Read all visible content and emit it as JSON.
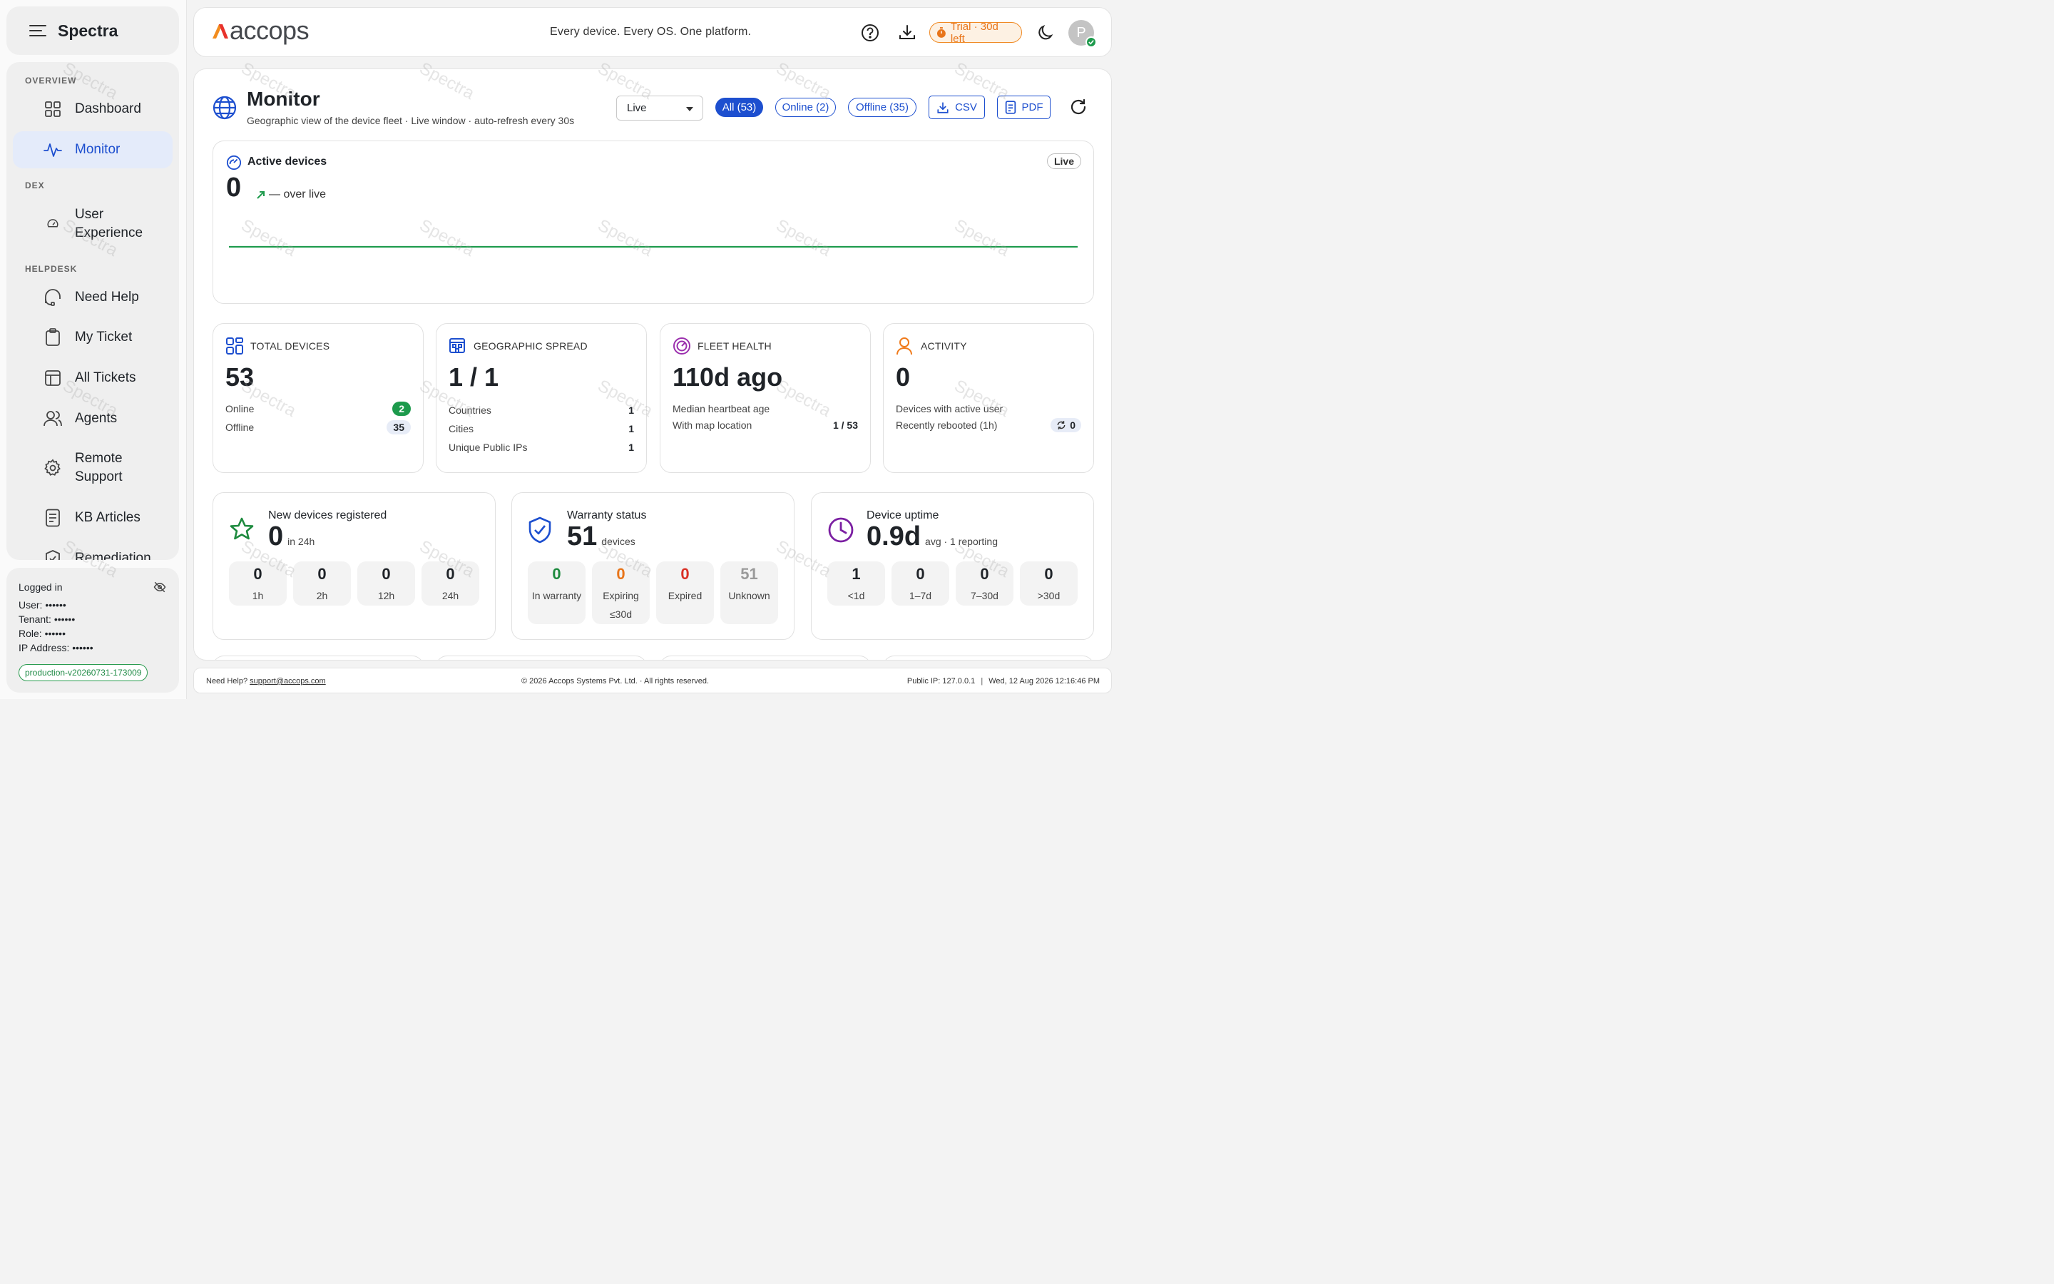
{
  "app": {
    "name": "Spectra",
    "watermark": "Spectra"
  },
  "sidebar": {
    "sections": [
      "OVERVIEW",
      "DEX",
      "HELPDESK"
    ],
    "items": [
      {
        "label": "Dashboard",
        "icon": "grid-icon",
        "active": false
      },
      {
        "label": "Monitor",
        "icon": "activity-icon",
        "active": true
      },
      {
        "label": "User Experience",
        "icon": "gauge-icon",
        "active": false
      },
      {
        "label": "Need Help",
        "icon": "headset-icon",
        "active": false
      },
      {
        "label": "My Ticket",
        "icon": "clipboard-icon",
        "active": false
      },
      {
        "label": "All Tickets",
        "icon": "table-icon",
        "active": false
      },
      {
        "label": "Agents",
        "icon": "users-icon",
        "active": false
      },
      {
        "label": "Remote Support",
        "icon": "gear-icon",
        "active": false
      },
      {
        "label": "KB Articles",
        "icon": "document-icon",
        "active": false
      },
      {
        "label": "Remediation",
        "icon": "shield-check-icon",
        "active": false
      }
    ]
  },
  "session": {
    "heading": "Logged in",
    "user": "User: ••••••",
    "tenant": "Tenant: ••••••",
    "role": "Role: ••••••",
    "ip": "IP Address: ••••••",
    "version": "production-v20260731-173009"
  },
  "topbar": {
    "logo_text": "accops",
    "tagline": "Every device. Every OS. One platform.",
    "trial": "Trial · 30d left",
    "avatar_initial": "P"
  },
  "page": {
    "title": "Monitor",
    "subtitle": "Geographic view of the device fleet · Live window · auto-refresh every 30s",
    "window_select": "Live",
    "filters": {
      "all": "All (53)",
      "online": "Online (2)",
      "offline": "Offline (35)"
    },
    "csv": "CSV",
    "pdf": "PDF"
  },
  "active_devices": {
    "title": "Active devices",
    "value": "0",
    "trend_text": "— over live",
    "badge": "Live",
    "line_color": "#1f9b4d"
  },
  "stats": {
    "total": {
      "head": "TOTAL DEVICES",
      "value": "53",
      "online_label": "Online",
      "online": "2",
      "offline_label": "Offline",
      "offline": "35"
    },
    "geo": {
      "head": "GEOGRAPHIC SPREAD",
      "value": "1 / 1",
      "rows": [
        {
          "label": "Countries",
          "value": "1"
        },
        {
          "label": "Cities",
          "value": "1"
        },
        {
          "label": "Unique Public IPs",
          "value": "1"
        }
      ]
    },
    "health": {
      "head": "FLEET HEALTH",
      "value": "110d ago",
      "median_label": "Median heartbeat age",
      "map_label": "With map location",
      "map_value": "1 / 53"
    },
    "activity": {
      "head": "ACTIVITY",
      "value": "0",
      "active_label": "Devices with active user",
      "reboot_label": "Recently rebooted (1h)",
      "reboot_value": "0"
    }
  },
  "new_devices": {
    "title": "New devices registered",
    "value": "0",
    "unit": "in 24h",
    "tiles": [
      {
        "n": "0",
        "l": "1h"
      },
      {
        "n": "0",
        "l": "2h"
      },
      {
        "n": "0",
        "l": "12h"
      },
      {
        "n": "0",
        "l": "24h"
      }
    ]
  },
  "warranty": {
    "title": "Warranty status",
    "value": "51",
    "unit": "devices",
    "tiles": [
      {
        "n": "0",
        "l": "In warranty",
        "color": "#1d8a3e"
      },
      {
        "n": "0",
        "l": "Expiring ≤30d",
        "color": "#e8751a"
      },
      {
        "n": "0",
        "l": "Expired",
        "color": "#d93025"
      },
      {
        "n": "51",
        "l": "Unknown",
        "color": "#9a9a9a"
      }
    ]
  },
  "uptime": {
    "title": "Device uptime",
    "value": "0.9d",
    "unit": "avg · 1 reporting",
    "tiles": [
      {
        "n": "1",
        "l": "<1d"
      },
      {
        "n": "0",
        "l": "1–7d"
      },
      {
        "n": "0",
        "l": "7–30d"
      },
      {
        "n": "0",
        "l": ">30d"
      }
    ]
  },
  "footer": {
    "help_prefix": "Need Help?",
    "help_email": "support@accops.com",
    "copyright": "© 2026 Accops Systems Pvt. Ltd. · All rights reserved.",
    "public_ip": "Public IP: 127.0.0.1",
    "datetime": "Wed, 12 Aug 2026 12:16:46 PM"
  }
}
